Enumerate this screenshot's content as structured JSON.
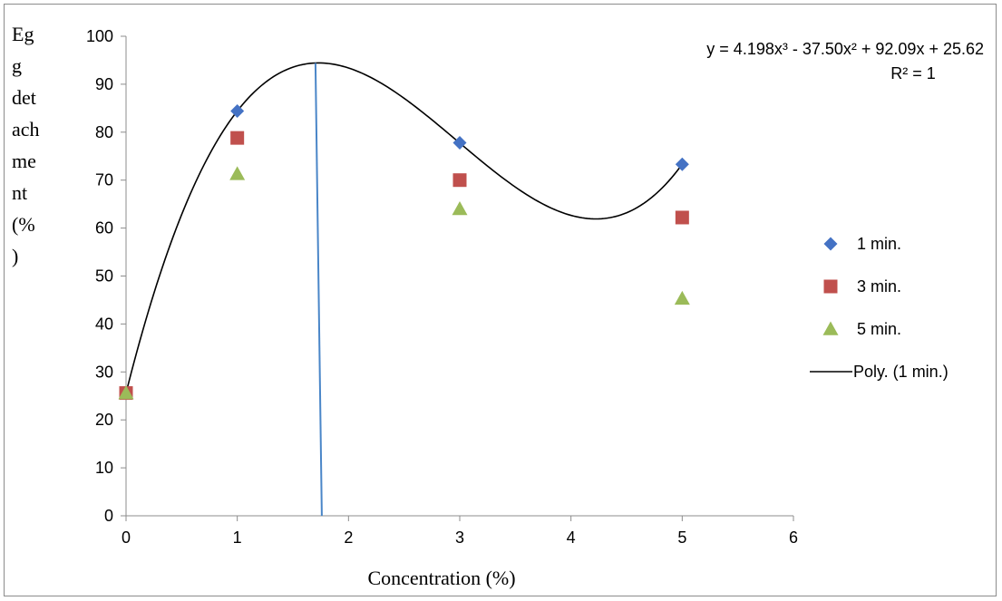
{
  "chart_data": {
    "type": "scatter",
    "title": "",
    "xlabel": "Concentration (%)",
    "ylabel_lines": [
      "Eg",
      "g",
      "det",
      "ach",
      "me",
      "nt",
      "(%",
      ")"
    ],
    "xlim": [
      0,
      6
    ],
    "ylim": [
      0,
      100
    ],
    "x_ticks": [
      0,
      1,
      2,
      3,
      4,
      5,
      6
    ],
    "y_ticks": [
      0,
      10,
      20,
      30,
      40,
      50,
      60,
      70,
      80,
      90,
      100
    ],
    "grid": false,
    "legend_position": "right",
    "series": [
      {
        "name": "1 min.",
        "marker": "diamond",
        "color": "#4472C4",
        "x": [
          0,
          1,
          3,
          5
        ],
        "y": [
          25.6,
          84.4,
          77.8,
          73.3
        ]
      },
      {
        "name": "3 min.",
        "marker": "square",
        "color": "#C0504D",
        "x": [
          0,
          1,
          3,
          5
        ],
        "y": [
          25.6,
          78.8,
          70.0,
          62.2
        ]
      },
      {
        "name": "5 min.",
        "marker": "triangle",
        "color": "#9BBB59",
        "x": [
          0,
          1,
          3,
          5
        ],
        "y": [
          25.6,
          71.3,
          64.0,
          45.3
        ]
      }
    ],
    "trendline": {
      "name": "Poly. (1 min.)",
      "type": "polynomial",
      "order": 3,
      "coefficients": [
        4.198,
        -37.5,
        92.09,
        25.62
      ],
      "x_range": [
        0,
        5
      ],
      "color": "#000000"
    },
    "vertical_line": {
      "x": 1.76,
      "color": "#4A86C8"
    },
    "equation_lines": [
      "y = 4.198x³ - 37.50x² + 92.09x + 25.62",
      "R² = 1"
    ]
  }
}
